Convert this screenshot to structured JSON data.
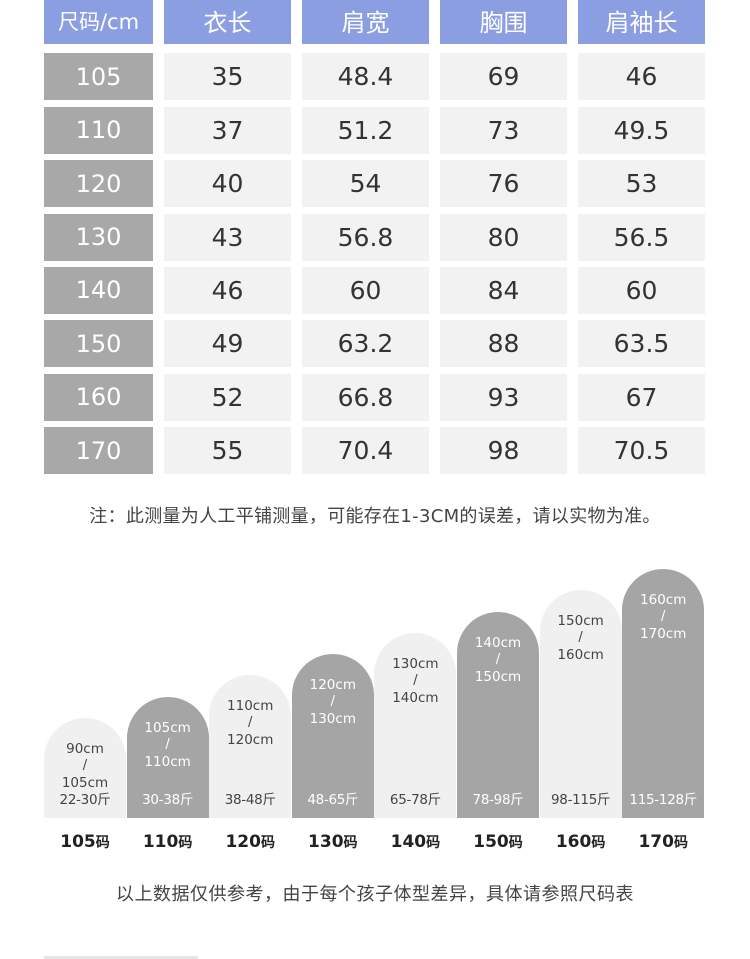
{
  "table": {
    "headers": [
      "尺码/cm",
      "衣长",
      "肩宽",
      "胸围",
      "肩袖长"
    ],
    "rows": [
      [
        "105",
        "35",
        "48.4",
        "69",
        "46"
      ],
      [
        "110",
        "37",
        "51.2",
        "73",
        "49.5"
      ],
      [
        "120",
        "40",
        "54",
        "76",
        "53"
      ],
      [
        "130",
        "43",
        "56.8",
        "80",
        "56.5"
      ],
      [
        "140",
        "46",
        "60",
        "84",
        "60"
      ],
      [
        "150",
        "49",
        "63.2",
        "88",
        "63.5"
      ],
      [
        "160",
        "52",
        "66.8",
        "93",
        "67"
      ],
      [
        "170",
        "55",
        "70.4",
        "98",
        "70.5"
      ]
    ]
  },
  "note": "注：此测量为人工平铺测量，可能存在1-3CM的误差，请以实物为准。",
  "chart_data": {
    "type": "bar",
    "categories": [
      "105码",
      "110码",
      "120码",
      "130码",
      "140码",
      "150码",
      "160码",
      "170码"
    ],
    "bars": [
      {
        "height_low": "90cm",
        "height_high": "105cm",
        "weight": "22-30斤",
        "tone": "light"
      },
      {
        "height_low": "105cm",
        "height_high": "110cm",
        "weight": "30-38斤",
        "tone": "dark"
      },
      {
        "height_low": "110cm",
        "height_high": "120cm",
        "weight": "38-48斤",
        "tone": "light"
      },
      {
        "height_low": "120cm",
        "height_high": "130cm",
        "weight": "48-65斤",
        "tone": "dark"
      },
      {
        "height_low": "130cm",
        "height_high": "140cm",
        "weight": "65-78斤",
        "tone": "light"
      },
      {
        "height_low": "140cm",
        "height_high": "150cm",
        "weight": "78-98斤",
        "tone": "dark"
      },
      {
        "height_low": "150cm",
        "height_high": "160cm",
        "weight": "98-115斤",
        "tone": "light"
      },
      {
        "height_low": "160cm",
        "height_high": "170cm",
        "weight": "115-128斤",
        "tone": "dark"
      }
    ],
    "size_labels": [
      {
        "num": "105",
        "unit": "码"
      },
      {
        "num": "110",
        "unit": "码"
      },
      {
        "num": "120",
        "unit": "码"
      },
      {
        "num": "130",
        "unit": "码"
      },
      {
        "num": "140",
        "unit": "码"
      },
      {
        "num": "150",
        "unit": "码"
      },
      {
        "num": "160",
        "unit": "码"
      },
      {
        "num": "170",
        "unit": "码"
      }
    ]
  },
  "footer": "以上数据仅供参考，由于每个孩子体型差异，具体请参照尺码表",
  "colors": {
    "header": "#8b9ee2",
    "size_cell": "#a8a8a8",
    "cell": "#f2f2f2",
    "bar_dark": "#a5a5a5",
    "bar_light": "#f0f0f0"
  }
}
